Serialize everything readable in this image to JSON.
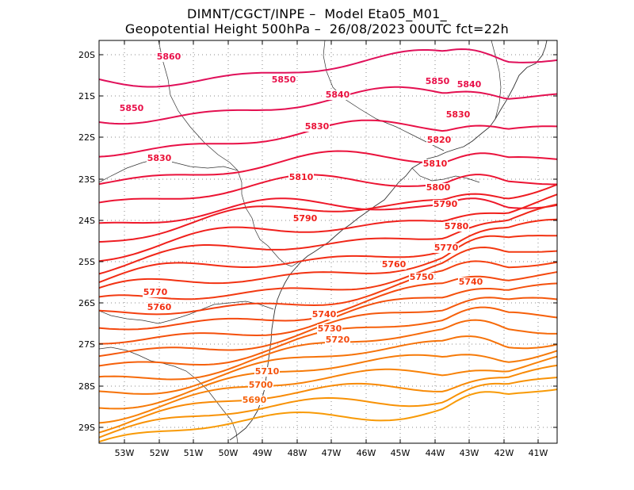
{
  "header": {
    "line1": "DIMNT/CGCT/INPE –  Model Eta05_M01_",
    "line2": "Geopotential Height 500hPa –  26/08/2023 00UTC fct=22h"
  },
  "axes": {
    "lat_labels": [
      "20S",
      "21S",
      "22S",
      "23S",
      "24S",
      "25S",
      "26S",
      "27S",
      "28S",
      "29S"
    ],
    "lon_labels": [
      "53W",
      "52W",
      "51W",
      "50W",
      "49W",
      "48W",
      "47W",
      "46W",
      "45W",
      "44W",
      "43W",
      "42W",
      "41W"
    ]
  },
  "contour_labels": [
    {
      "value": "5860",
      "color": "#e8104a"
    },
    {
      "value": "5850",
      "color": "#e8104a"
    },
    {
      "value": "5840",
      "color": "#e81040"
    },
    {
      "value": "5850",
      "color": "#e8104a"
    },
    {
      "value": "5840",
      "color": "#e8104a"
    },
    {
      "value": "5850",
      "color": "#e8104a"
    },
    {
      "value": "5830",
      "color": "#ea1238"
    },
    {
      "value": "5830",
      "color": "#ea1238"
    },
    {
      "value": "5820",
      "color": "#ec1430"
    },
    {
      "value": "5830",
      "color": "#ea1238"
    },
    {
      "value": "5810",
      "color": "#ee1628"
    },
    {
      "value": "5810",
      "color": "#ee1628"
    },
    {
      "value": "5800",
      "color": "#ee1a20"
    },
    {
      "value": "5790",
      "color": "#f01e1a"
    },
    {
      "value": "5790",
      "color": "#f01e1a"
    },
    {
      "value": "5780",
      "color": "#f02416"
    },
    {
      "value": "5770",
      "color": "#f22a14"
    },
    {
      "value": "5760",
      "color": "#f23012"
    },
    {
      "value": "5750",
      "color": "#f23612"
    },
    {
      "value": "5740",
      "color": "#f43c10"
    },
    {
      "value": "5770",
      "color": "#f22a14"
    },
    {
      "value": "5760",
      "color": "#f23012"
    },
    {
      "value": "5740",
      "color": "#f43c10"
    },
    {
      "value": "5730",
      "color": "#f4440e"
    },
    {
      "value": "5720",
      "color": "#f44a0e"
    },
    {
      "value": "5710",
      "color": "#f4520c"
    },
    {
      "value": "5700",
      "color": "#f45a0c"
    },
    {
      "value": "5690",
      "color": "#f6620a"
    }
  ],
  "isoline_colors": [
    "#e0105a",
    "#e41050",
    "#e81046",
    "#ea123c",
    "#ec1432",
    "#ee182a",
    "#ee1c22",
    "#f0201c",
    "#f02618",
    "#f22c14",
    "#f23212",
    "#f23a12",
    "#f44010",
    "#f4480e",
    "#f4500c",
    "#f4580c",
    "#f6600a",
    "#f66a0a",
    "#f67208",
    "#f67a08",
    "#f88208",
    "#f88a06",
    "#f89206",
    "#f89a06"
  ],
  "coast_color": "#333333",
  "grid_color": "#888888"
}
